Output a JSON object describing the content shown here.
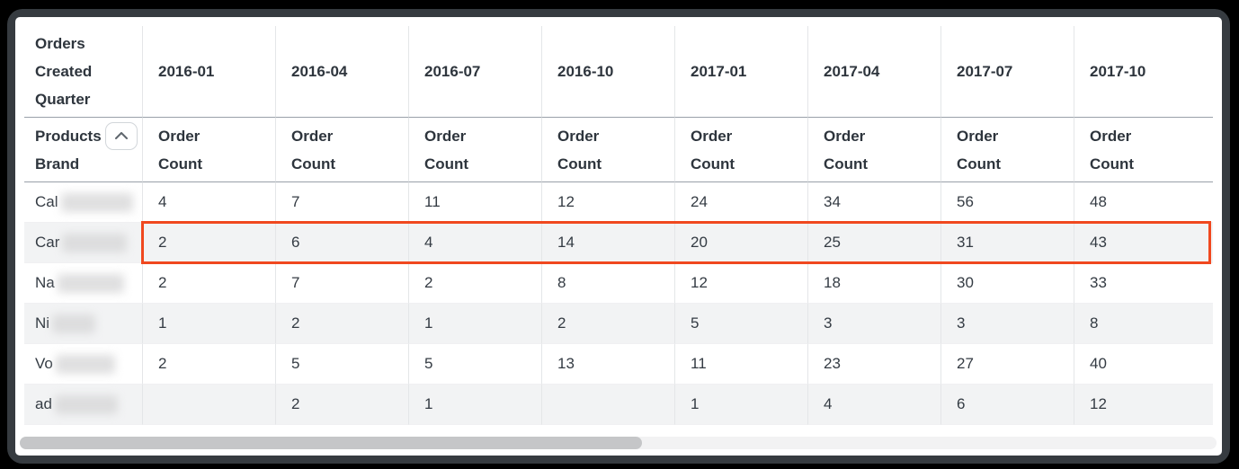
{
  "pivot_table": {
    "corner_header": "Orders Created Quarter",
    "row_dimension_label": "Products Brand",
    "sort_icon": "chevron-up",
    "measure_label": "Order Count",
    "column_headers": [
      "2016-01",
      "2016-04",
      "2016-07",
      "2016-10",
      "2017-01",
      "2017-04",
      "2017-07",
      "2017-10"
    ],
    "rows": [
      {
        "label_prefix": "Cal",
        "label_redacted": true,
        "values": [
          "4",
          "7",
          "11",
          "12",
          "24",
          "34",
          "56",
          "48"
        ]
      },
      {
        "label_prefix": "Car",
        "label_redacted": true,
        "values": [
          "2",
          "6",
          "4",
          "14",
          "20",
          "25",
          "31",
          "43"
        ]
      },
      {
        "label_prefix": "Na",
        "label_redacted": true,
        "values": [
          "2",
          "7",
          "2",
          "8",
          "12",
          "18",
          "30",
          "33"
        ]
      },
      {
        "label_prefix": "Ni",
        "label_redacted": true,
        "values": [
          "1",
          "2",
          "1",
          "2",
          "5",
          "3",
          "3",
          "8"
        ]
      },
      {
        "label_prefix": "Vo",
        "label_redacted": true,
        "values": [
          "2",
          "5",
          "5",
          "13",
          "11",
          "23",
          "27",
          "40"
        ]
      },
      {
        "label_prefix": "ad",
        "label_redacted": true,
        "values": [
          "",
          "2",
          "1",
          "",
          "1",
          "4",
          "6",
          "12"
        ]
      }
    ],
    "highlighted_row_index": 1,
    "highlight_color": "#f0481f"
  },
  "scrollbar": {
    "orientation": "horizontal"
  }
}
